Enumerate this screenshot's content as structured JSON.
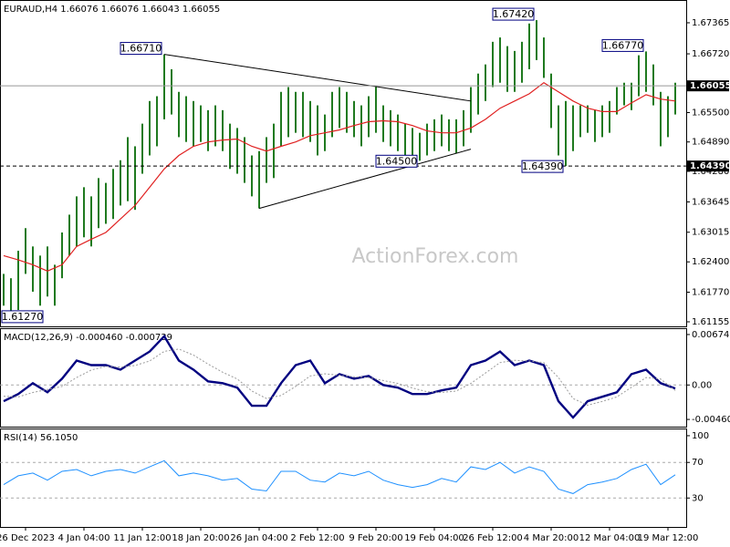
{
  "chart_data": [
    {
      "type": "ohlc",
      "title": "EURAUD,H4 1.66076 1.66076 1.66043 1.66055",
      "watermark": "ActionForex.com",
      "color": "#1f7a1f",
      "xlim": [
        -0.5,
        93.5
      ],
      "ylim": [
        1.6106,
        1.67819
      ],
      "yticks": [
        1.67365,
        {
          "value": 1.6672,
          "label": "1.66720"
        },
        {
          "value": 1.655,
          "label": "1.65500"
        },
        {
          "value": 1.6489,
          "label": "1.64890"
        },
        {
          "value": 1.6428,
          "label": "1.64280"
        },
        1.63645,
        1.63015,
        {
          "value": 1.624,
          "label": "1.62400"
        },
        {
          "value": 1.6177,
          "label": "1.61770"
        },
        1.61155
      ],
      "high": [
        1.6215,
        1.6206,
        1.6263,
        1.631,
        1.6272,
        1.6253,
        1.6272,
        1.6234,
        1.6301,
        1.6338,
        1.6376,
        1.6395,
        1.6376,
        1.6414,
        1.6404,
        1.6433,
        1.6451,
        1.6499,
        1.648,
        1.6527,
        1.6574,
        1.6584,
        1.6671,
        1.664,
        1.6593,
        1.6584,
        1.6574,
        1.6565,
        1.6555,
        1.6565,
        1.6555,
        1.6527,
        1.6518,
        1.6499,
        1.6461,
        1.647,
        1.6499,
        1.6527,
        1.6593,
        1.6603,
        1.6593,
        1.6593,
        1.6574,
        1.6565,
        1.6546,
        1.6593,
        1.6603,
        1.6593,
        1.6574,
        1.6565,
        1.6584,
        1.6603,
        1.6565,
        1.6555,
        1.6546,
        1.6527,
        1.6518,
        1.6508,
        1.6527,
        1.6536,
        1.6546,
        1.6536,
        1.6536,
        1.6555,
        1.6603,
        1.6631,
        1.665,
        1.6697,
        1.6706,
        1.6688,
        1.6678,
        1.6697,
        1.6735,
        1.6742,
        1.6706,
        1.6631,
        1.6565,
        1.6574,
        1.6565,
        1.6565,
        1.6565,
        1.6555,
        1.6565,
        1.6574,
        1.6603,
        1.6612,
        1.6612,
        1.6669,
        1.6677,
        1.665,
        1.6593,
        1.6584,
        1.6612
      ],
      "low": [
        1.6149,
        1.6127,
        1.614,
        1.6215,
        1.6178,
        1.6149,
        1.6168,
        1.6149,
        1.6206,
        1.6253,
        1.6272,
        1.6291,
        1.6272,
        1.631,
        1.6319,
        1.6329,
        1.6357,
        1.6366,
        1.6348,
        1.6423,
        1.6461,
        1.648,
        1.6536,
        1.6546,
        1.6499,
        1.6489,
        1.648,
        1.6489,
        1.647,
        1.648,
        1.647,
        1.6433,
        1.6423,
        1.6404,
        1.6376,
        1.6351,
        1.6404,
        1.6414,
        1.648,
        1.6499,
        1.6508,
        1.6499,
        1.6489,
        1.6461,
        1.647,
        1.6499,
        1.6518,
        1.6508,
        1.6499,
        1.648,
        1.6499,
        1.6508,
        1.6489,
        1.648,
        1.647,
        1.6461,
        1.6457,
        1.645,
        1.6461,
        1.647,
        1.648,
        1.647,
        1.6465,
        1.648,
        1.6508,
        1.6546,
        1.6574,
        1.6603,
        1.6612,
        1.6593,
        1.6593,
        1.6612,
        1.664,
        1.6659,
        1.6622,
        1.6518,
        1.6461,
        1.6439,
        1.647,
        1.6499,
        1.6508,
        1.6489,
        1.6499,
        1.6508,
        1.6546,
        1.6565,
        1.6555,
        1.6584,
        1.6593,
        1.6565,
        1.648,
        1.6499,
        1.6546
      ],
      "overlays": [
        {
          "color": "#e02020",
          "x": [
            0,
            2,
            4,
            6,
            8,
            10,
            12,
            14,
            16,
            18,
            20,
            22,
            24,
            26,
            28,
            30,
            32,
            34,
            36,
            38,
            40,
            42,
            44,
            46,
            48,
            50,
            52,
            54,
            56,
            58,
            60,
            62,
            64,
            66,
            68,
            70,
            72,
            74,
            76,
            78,
            80,
            82,
            84,
            86,
            88,
            90,
            92
          ],
          "values": [
            1.6253,
            1.6244,
            1.6234,
            1.6221,
            1.6234,
            1.6272,
            1.6287,
            1.6301,
            1.6329,
            1.6357,
            1.6395,
            1.6433,
            1.6461,
            1.648,
            1.6489,
            1.6493,
            1.6495,
            1.648,
            1.647,
            1.648,
            1.6489,
            1.6502,
            1.6508,
            1.6514,
            1.6523,
            1.6531,
            1.6533,
            1.6531,
            1.6523,
            1.6512,
            1.6508,
            1.6508,
            1.6518,
            1.6536,
            1.6559,
            1.6574,
            1.6589,
            1.6612,
            1.6593,
            1.6574,
            1.6559,
            1.6552,
            1.6552,
            1.657,
            1.6587,
            1.6578,
            1.6574
          ]
        }
      ],
      "trendlines": [
        {
          "x": [
            22,
            64
          ],
          "values": [
            1.6671,
            1.6574
          ]
        },
        {
          "x": [
            35,
            64
          ],
          "values": [
            1.6351,
            1.6474
          ]
        }
      ],
      "price_lines": [
        {
          "value": 1.66055,
          "style": "solid"
        },
        {
          "value": {
            "value": 1.6439,
            "label": "1.64390"
          },
          "style": "dashed"
        }
      ],
      "annotations": [
        {
          "bar": 1,
          "label": "1.61270"
        },
        {
          "bar": 22,
          "label": "1.66710"
        },
        {
          "bar": 57,
          "label": "1.64500"
        },
        {
          "bar": 73,
          "label": "1.67420"
        },
        {
          "bar": 77,
          "label": "1.64390"
        },
        {
          "bar": 88,
          "label": "1.66770"
        }
      ]
    },
    {
      "type": "line",
      "title": "MACD(12,26,9) -0.000460 -0.000739",
      "xlim": [
        -0.5,
        93.5
      ],
      "ylim": [
        -0.005569,
        0.007467
      ],
      "yticks": [
        0.006743,
        {
          "value": 0,
          "label": "0.00"
        },
        -0.004603
      ],
      "levels": [
        0
      ],
      "x": [
        0,
        2,
        4,
        6,
        8,
        10,
        12,
        14,
        16,
        18,
        20,
        22,
        24,
        26,
        28,
        30,
        32,
        34,
        36,
        38,
        40,
        42,
        44,
        46,
        48,
        50,
        52,
        54,
        56,
        58,
        60,
        62,
        64,
        66,
        68,
        70,
        72,
        74,
        76,
        78,
        80,
        82,
        84,
        86,
        88,
        90,
        92
      ],
      "series": [
        {
          "color": "#000080",
          "width": 2.4,
          "values": [
            -0.00217,
            -0.00121,
            0.00024,
            -0.00097,
            0.00084,
            0.00326,
            0.00266,
            0.00266,
            0.00205,
            0.00326,
            0.00447,
            0.00652,
            0.00326,
            0.00205,
            0.00048,
            0.00024,
            -0.00036,
            -0.00278,
            -0.00278,
            0.00024,
            0.00266,
            0.00326,
            0.00024,
            0.00145,
            0.00084,
            0.00121,
            0,
            -0.00036,
            -0.00121,
            -0.00121,
            -0.00072,
            -0.00036,
            0.00266,
            0.00326,
            0.00447,
            0.00266,
            0.00326,
            0.00266,
            -0.00217,
            -0.00435,
            -0.00217,
            -0.00157,
            -0.00097,
            0.00145,
            0.00205,
            0.00024,
            -0.00046
          ]
        },
        {
          "color": "#9a9a9a",
          "width": 1,
          "values": [
            -0.0015,
            -0.0016,
            -0.001,
            -0.0006,
            -0.0002,
            0.001,
            0.002,
            0.0025,
            0.0024,
            0.0026,
            0.0032,
            0.0045,
            0.0048,
            0.004,
            0.0028,
            0.0017,
            0.0008,
            -0.0008,
            -0.0018,
            -0.0014,
            -0.0002,
            0.0012,
            0.0015,
            0.0013,
            0.0011,
            0.001,
            0.0006,
            0.0002,
            -0.0004,
            -0.0009,
            -0.001,
            -0.0008,
            0.0002,
            0.0016,
            0.003,
            0.0033,
            0.0032,
            0.003,
            0.001,
            -0.0018,
            -0.0027,
            -0.0022,
            -0.0016,
            -0.0003,
            0.001,
            0.0008,
            -0.000739
          ]
        }
      ]
    },
    {
      "type": "line",
      "title": "RSI(14) 56.1050",
      "xlim": [
        -0.5,
        93.5
      ],
      "ylim": [
        -2.5,
        107.1
      ],
      "yticks": [
        100,
        70,
        30
      ],
      "levels": [
        70,
        30
      ],
      "xticks": [
        {
          "value": 3,
          "label": "26 Dec 2023"
        },
        {
          "value": 11,
          "label": "4 Jan 04:00"
        },
        {
          "value": 19,
          "label": "11 Jan 12:00"
        },
        {
          "value": 27,
          "label": "18 Jan 20:00"
        },
        {
          "value": 35,
          "label": "26 Jan 04:00"
        },
        {
          "value": 43,
          "label": "2 Feb 12:00"
        },
        {
          "value": 51,
          "label": "9 Feb 20:00"
        },
        {
          "value": 59,
          "label": "19 Feb 04:00"
        },
        {
          "value": 67,
          "label": "26 Feb 12:00"
        },
        {
          "value": 75,
          "label": "4 Mar 20:00"
        },
        {
          "value": 83,
          "label": "12 Mar 04:00"
        },
        {
          "value": 91,
          "label": "19 Mar 12:00"
        }
      ],
      "x": [
        0,
        2,
        4,
        6,
        8,
        10,
        12,
        14,
        16,
        18,
        20,
        22,
        24,
        26,
        28,
        30,
        32,
        34,
        36,
        38,
        40,
        42,
        44,
        46,
        48,
        50,
        52,
        54,
        56,
        58,
        60,
        62,
        64,
        66,
        68,
        70,
        72,
        74,
        76,
        78,
        80,
        82,
        84,
        86,
        88,
        90,
        92
      ],
      "series": [
        {
          "color": "#1e90ff",
          "width": 1,
          "values": [
            45,
            55,
            58,
            50,
            60,
            62,
            55,
            60,
            62,
            58,
            65,
            72,
            55,
            58,
            55,
            50,
            52,
            40,
            38,
            60,
            60,
            50,
            48,
            58,
            55,
            60,
            50,
            45,
            42,
            45,
            52,
            48,
            65,
            62,
            70,
            58,
            65,
            60,
            40,
            35,
            45,
            48,
            52,
            62,
            68,
            45,
            56.105
          ]
        }
      ]
    }
  ]
}
